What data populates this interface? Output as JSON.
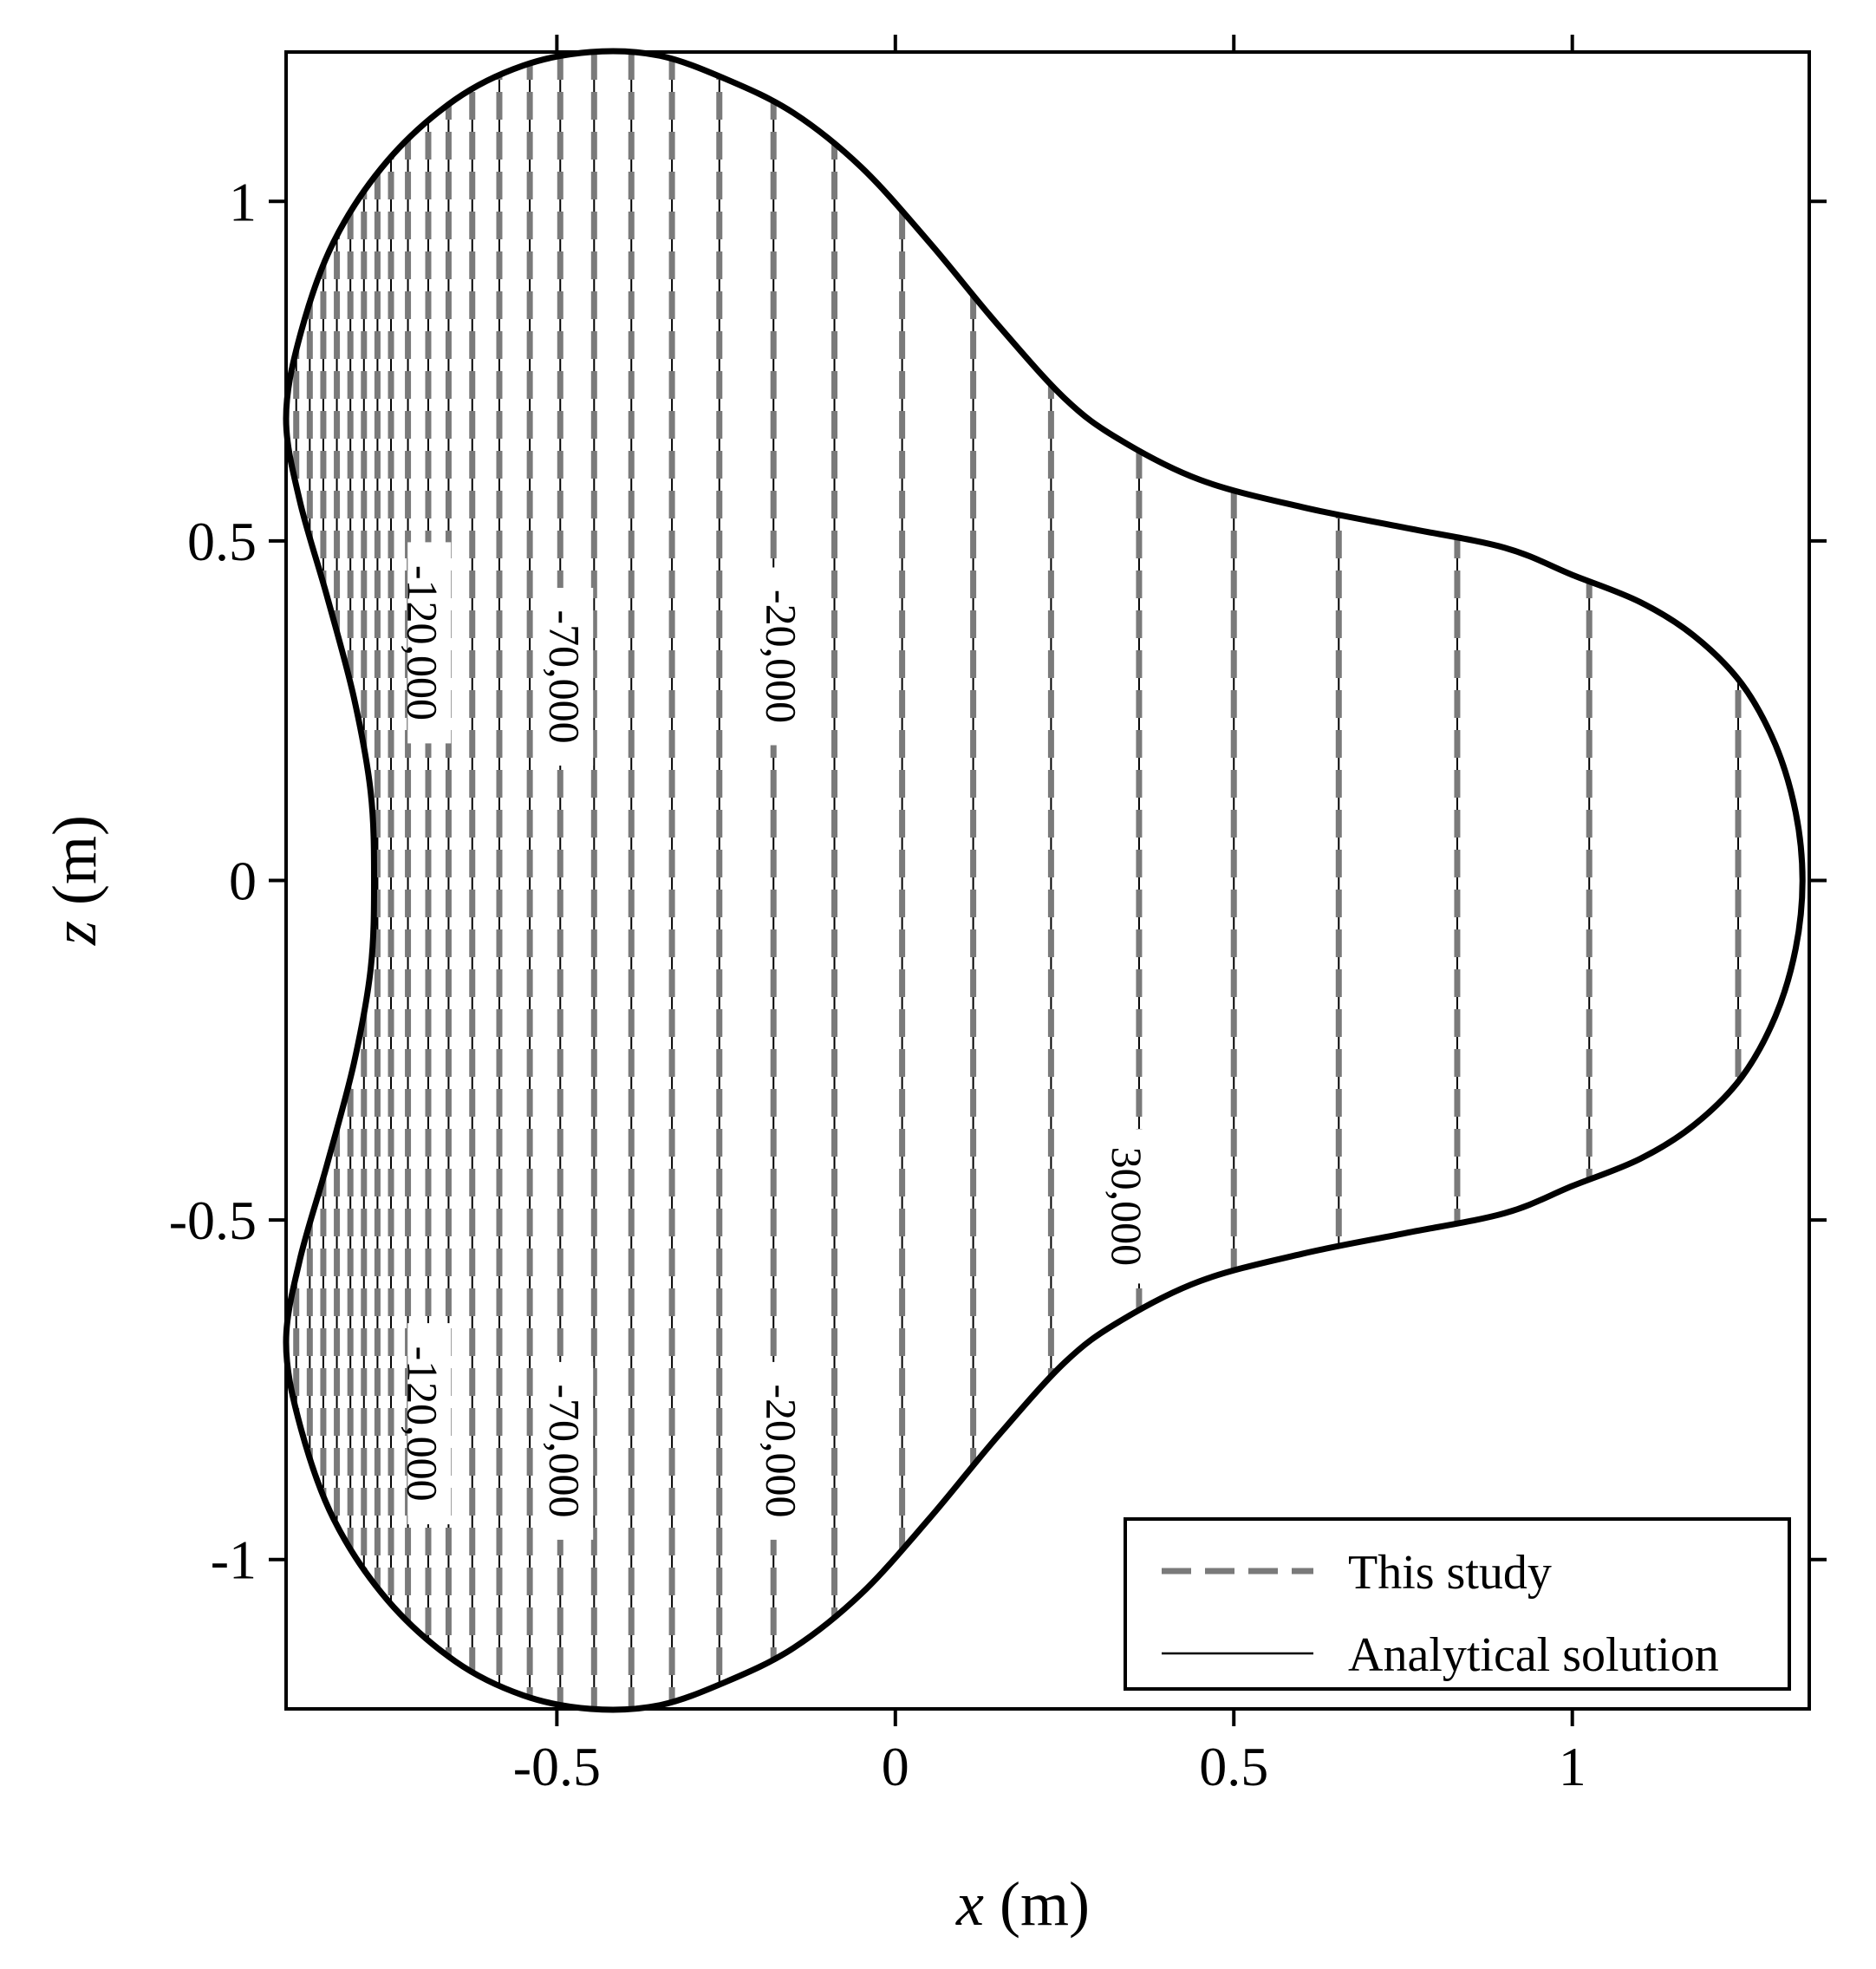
{
  "chart_data": {
    "type": "contour",
    "title": "",
    "xlabel": {
      "var": "x",
      "unit": " (m)"
    },
    "ylabel": {
      "var": "z",
      "unit": " (m)"
    },
    "xlim": [
      -0.9,
      1.35
    ],
    "ylim": [
      -1.22,
      1.22
    ],
    "xticks": [
      {
        "value": -0.5,
        "label": "-0.5"
      },
      {
        "value": 0,
        "label": "0"
      },
      {
        "value": 0.5,
        "label": "0.5"
      },
      {
        "value": 1,
        "label": "1"
      }
    ],
    "yticks": [
      {
        "value": 1,
        "label": "1"
      },
      {
        "value": 0.5,
        "label": "0.5"
      },
      {
        "value": 0,
        "label": "0"
      },
      {
        "value": -0.5,
        "label": "-0.5"
      },
      {
        "value": -1,
        "label": "-1"
      }
    ],
    "grid": false,
    "boundary": {
      "description": "three-lobed domain outline",
      "points": [
        [
          1.34,
          0.0
        ],
        [
          1.33,
          0.1
        ],
        [
          1.3,
          0.2
        ],
        [
          1.25,
          0.29
        ],
        [
          1.18,
          0.36
        ],
        [
          1.1,
          0.41
        ],
        [
          1.0,
          0.45
        ],
        [
          0.9,
          0.49
        ],
        [
          0.75,
          0.52
        ],
        [
          0.6,
          0.55
        ],
        [
          0.45,
          0.59
        ],
        [
          0.33,
          0.65
        ],
        [
          0.25,
          0.71
        ],
        [
          0.15,
          0.82
        ],
        [
          0.05,
          0.94
        ],
        [
          -0.05,
          1.05
        ],
        [
          -0.15,
          1.13
        ],
        [
          -0.25,
          1.18
        ],
        [
          -0.35,
          1.215
        ],
        [
          -0.45,
          1.22
        ],
        [
          -0.55,
          1.2
        ],
        [
          -0.65,
          1.15
        ],
        [
          -0.75,
          1.06
        ],
        [
          -0.83,
          0.94
        ],
        [
          -0.88,
          0.8
        ],
        [
          -0.9,
          0.68
        ],
        [
          -0.88,
          0.56
        ],
        [
          -0.84,
          0.42
        ],
        [
          -0.8,
          0.27
        ],
        [
          -0.775,
          0.13
        ],
        [
          -0.77,
          0.0
        ],
        [
          -0.775,
          -0.13
        ],
        [
          -0.8,
          -0.27
        ],
        [
          -0.84,
          -0.42
        ],
        [
          -0.88,
          -0.56
        ],
        [
          -0.9,
          -0.68
        ],
        [
          -0.88,
          -0.8
        ],
        [
          -0.83,
          -0.94
        ],
        [
          -0.75,
          -1.06
        ],
        [
          -0.65,
          -1.15
        ],
        [
          -0.55,
          -1.2
        ],
        [
          -0.45,
          -1.22
        ],
        [
          -0.35,
          -1.215
        ],
        [
          -0.25,
          -1.18
        ],
        [
          -0.15,
          -1.13
        ],
        [
          -0.05,
          -1.05
        ],
        [
          0.05,
          -0.94
        ],
        [
          0.15,
          -0.82
        ],
        [
          0.25,
          -0.71
        ],
        [
          0.33,
          -0.65
        ],
        [
          0.45,
          -0.59
        ],
        [
          0.6,
          -0.55
        ],
        [
          0.75,
          -0.52
        ],
        [
          0.9,
          -0.49
        ],
        [
          1.0,
          -0.45
        ],
        [
          1.1,
          -0.41
        ],
        [
          1.18,
          -0.36
        ],
        [
          1.25,
          -0.29
        ],
        [
          1.3,
          -0.2
        ],
        [
          1.33,
          -0.1
        ]
      ]
    },
    "contour_x": [
      -0.885,
      -0.865,
      -0.845,
      -0.825,
      -0.805,
      -0.785,
      -0.765,
      -0.745,
      -0.72,
      -0.69,
      -0.66,
      -0.625,
      -0.585,
      -0.54,
      -0.495,
      -0.445,
      -0.39,
      -0.33,
      -0.26,
      -0.18,
      -0.09,
      0.01,
      0.115,
      0.23,
      0.36,
      0.5,
      0.655,
      0.83,
      1.025,
      1.245
    ],
    "contour_labels": [
      {
        "text": "-120,000",
        "x": -0.7,
        "z": 0.35
      },
      {
        "text": "-70,000",
        "x": -0.49,
        "z": 0.3
      },
      {
        "text": "-20,000",
        "x": -0.17,
        "z": 0.33
      },
      {
        "text": "30,000",
        "x": 0.34,
        "z": -0.48
      },
      {
        "text": "-120,000",
        "x": -0.7,
        "z": -0.8
      },
      {
        "text": "-70,000",
        "x": -0.49,
        "z": -0.84
      },
      {
        "text": "-20,000",
        "x": -0.17,
        "z": -0.84
      }
    ],
    "series": [
      {
        "name": "This study",
        "style": "dashed",
        "color": "#7a7a7a"
      },
      {
        "name": "Analytical solution",
        "style": "solid",
        "color": "#000000"
      }
    ],
    "legend_position": "bottom-right"
  }
}
